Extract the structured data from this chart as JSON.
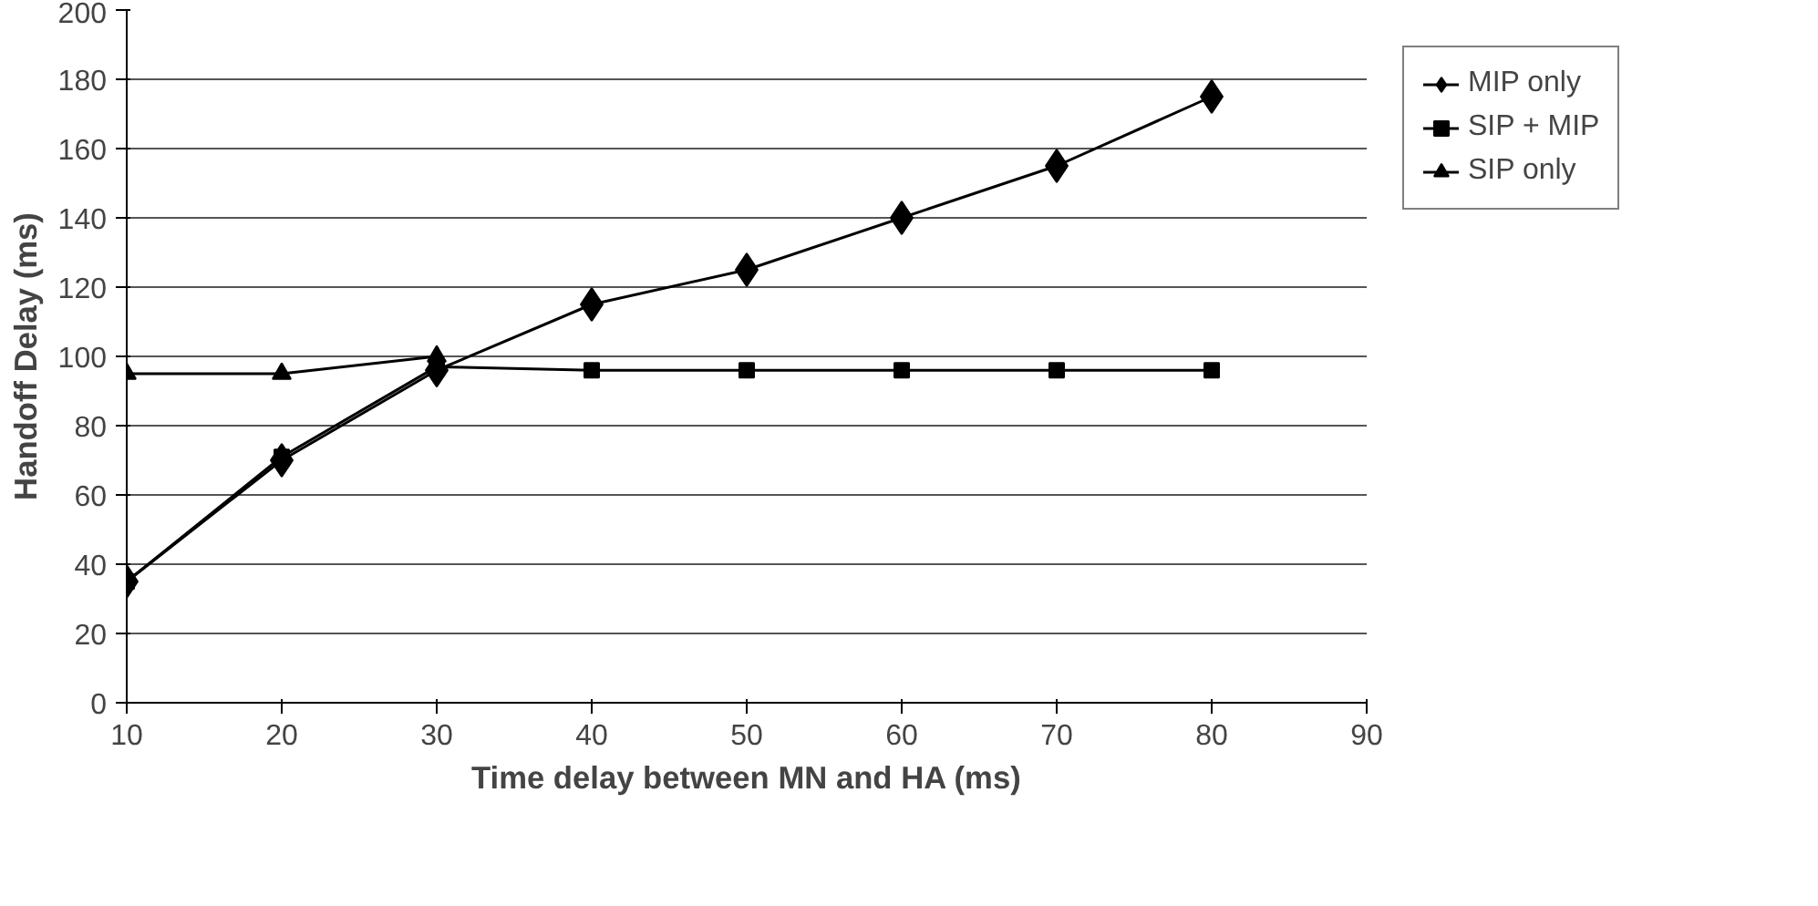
{
  "chart_data": {
    "type": "line",
    "xlabel": "Time delay between MN and HA (ms)",
    "ylabel": "Handoff Delay (ms)",
    "x": [
      10,
      20,
      30,
      40,
      50,
      60,
      70,
      80
    ],
    "series": [
      {
        "name": "MIP only",
        "color": "#000000",
        "marker": "diamond",
        "values": [
          35,
          70,
          96,
          115,
          125,
          140,
          155,
          175
        ]
      },
      {
        "name": "SIP + MIP",
        "color": "#000000",
        "marker": "square",
        "values": [
          35,
          71,
          97,
          96,
          96,
          96,
          96,
          96
        ]
      },
      {
        "name": "SIP only",
        "color": "#000000",
        "marker": "triangle",
        "values": [
          95,
          95,
          100,
          null,
          null,
          null,
          null,
          null
        ]
      }
    ],
    "xlim": [
      10,
      90
    ],
    "xticks": [
      10,
      20,
      30,
      40,
      50,
      60,
      70,
      80,
      90
    ],
    "ylim": [
      0,
      200
    ],
    "yticks": [
      0,
      20,
      40,
      60,
      80,
      100,
      120,
      140,
      160,
      180,
      200
    ],
    "grid": "y",
    "legend": "right"
  }
}
